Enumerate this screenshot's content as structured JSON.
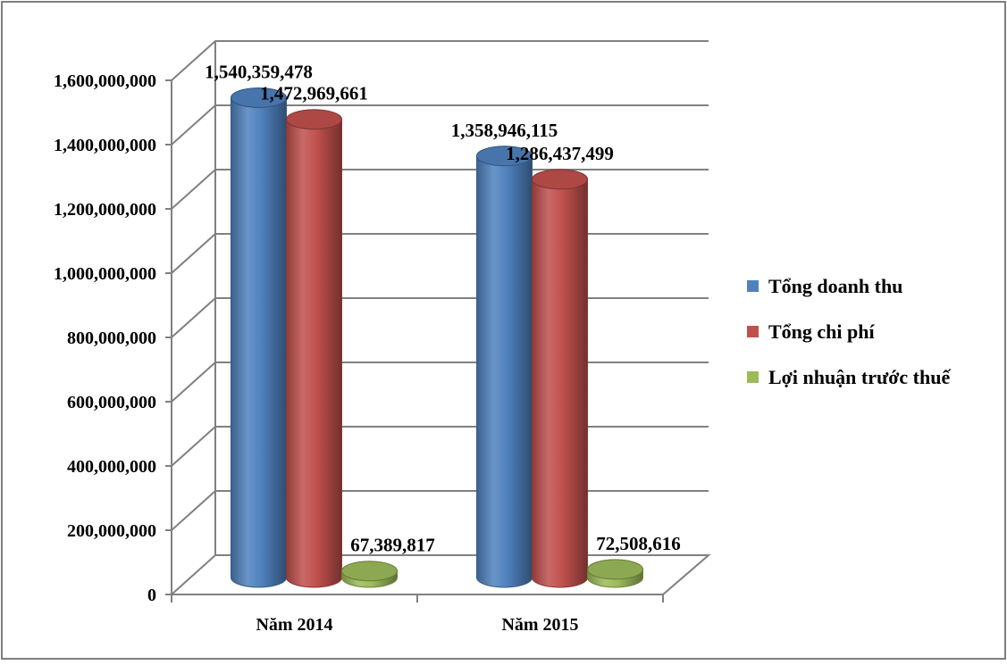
{
  "chart_data": {
    "type": "bar",
    "categories": [
      "Năm 2014",
      "Năm 2015"
    ],
    "series": [
      {
        "name": "Tổng doanh thu",
        "values": [
          1540359478,
          1358946115
        ],
        "color": "#4f81bd",
        "labels": [
          "1,540,359,478",
          "1,358,946,115"
        ]
      },
      {
        "name": "Tổng chi phí",
        "values": [
          1472969661,
          1286437499
        ],
        "color": "#c0504d",
        "labels": [
          "1,472,969,661",
          "1,286,437,499"
        ]
      },
      {
        "name": "Lợi nhuận trước thuế",
        "values": [
          67389817,
          72508616
        ],
        "color": "#9bbb59",
        "labels": [
          "67,389,817",
          "72,508,616"
        ]
      }
    ],
    "ylim": [
      0,
      1600000000
    ],
    "yticks": [
      0,
      200000000,
      400000000,
      600000000,
      800000000,
      1000000000,
      1200000000,
      1400000000,
      1600000000
    ],
    "ytick_labels": [
      "0",
      "200,000,000",
      "400,000,000",
      "600,000,000",
      "800,000,000",
      "1,000,000,000",
      "1,200,000,000",
      "1,400,000,000",
      "1,600,000,000"
    ],
    "grid": true,
    "legend_position": "right",
    "style": "3d-cylinder"
  }
}
